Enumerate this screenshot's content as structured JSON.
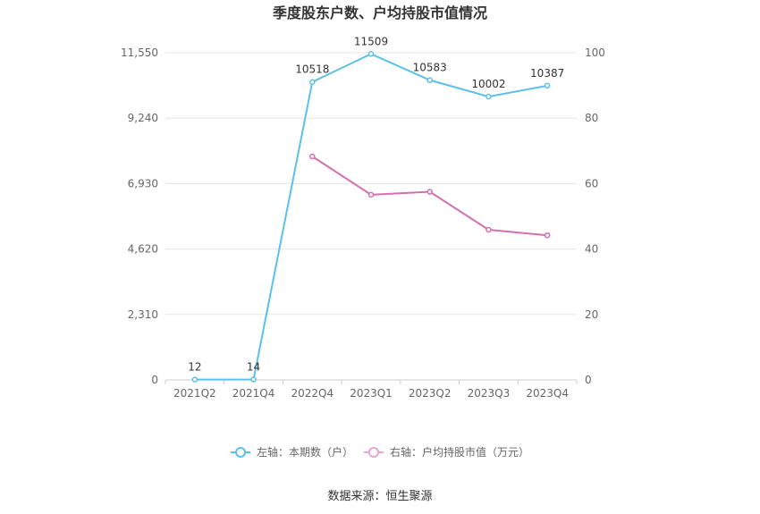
{
  "chart_data": {
    "type": "line",
    "title": "季度股东户数、户均持股市值情况",
    "categories": [
      "2021Q2",
      "2021Q4",
      "2022Q4",
      "2023Q1",
      "2023Q2",
      "2023Q3",
      "2023Q4"
    ],
    "left_axis": {
      "ylim": [
        0,
        11550
      ],
      "ticks": [
        "0",
        "2,310",
        "4,620",
        "6,930",
        "9,240",
        "11,550"
      ],
      "tick_values": [
        0,
        2310,
        4620,
        6930,
        9240,
        11550
      ]
    },
    "right_axis": {
      "ylim": [
        0,
        100
      ],
      "ticks": [
        "0",
        "20",
        "40",
        "60",
        "80",
        "100"
      ],
      "tick_values": [
        0,
        20,
        40,
        60,
        80,
        100
      ]
    },
    "series": [
      {
        "name": "左轴：本期数（户）",
        "axis": "left",
        "color": "#5bc0eb",
        "values": [
          12,
          14,
          10518,
          11509,
          10583,
          10002,
          10387
        ],
        "labels": [
          "12",
          "14",
          "10518",
          "11509",
          "10583",
          "10002",
          "10387"
        ]
      },
      {
        "name": "右轴：户均持股市值（万元）",
        "axis": "right",
        "color": "#d46eb1",
        "values": [
          null,
          null,
          68.3,
          56.6,
          57.5,
          45.9,
          44.2
        ]
      }
    ],
    "grid": true,
    "legend": "bottom-center"
  },
  "source": "数据来源：恒生聚源"
}
